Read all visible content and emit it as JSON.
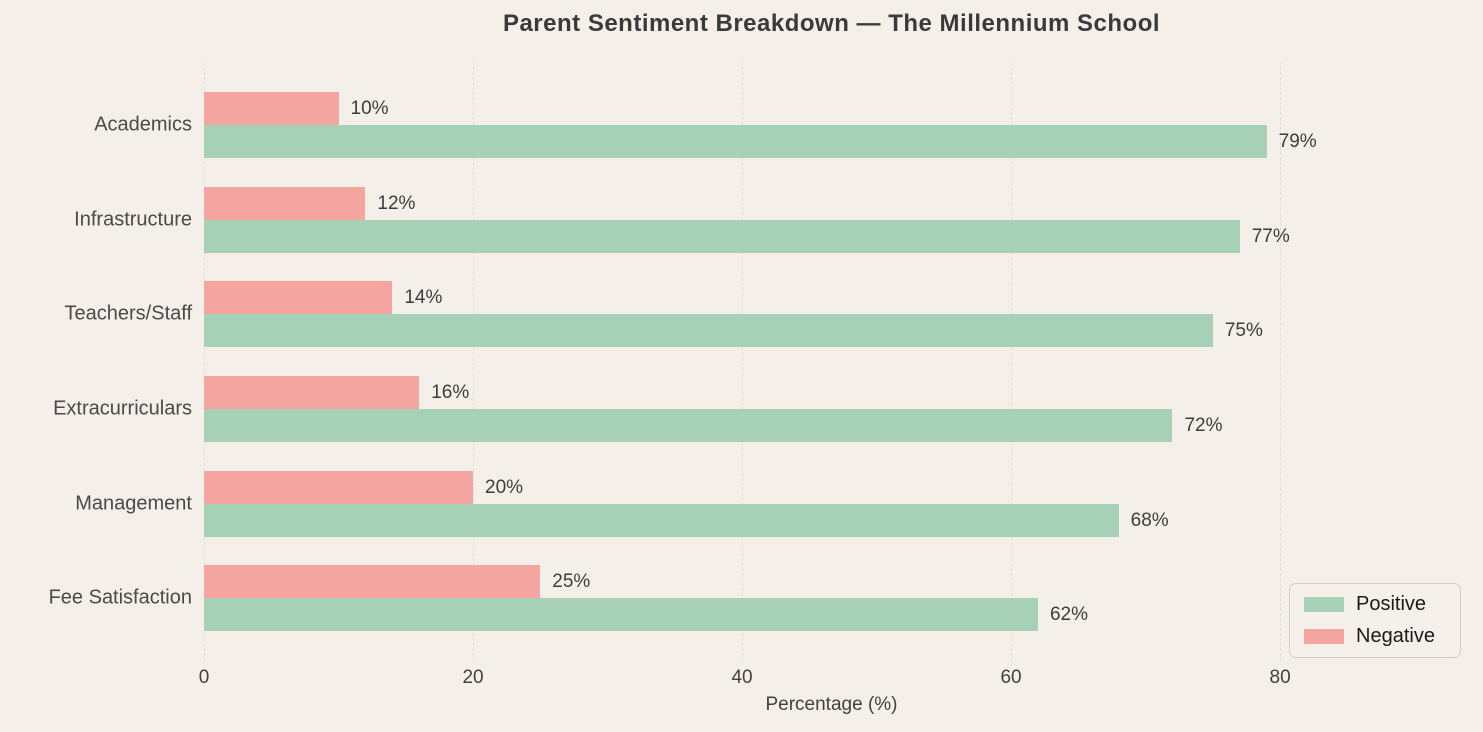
{
  "title": "Parent Sentiment Breakdown — The Millennium School",
  "chart_data": {
    "type": "bar",
    "orientation": "horizontal",
    "title": "Parent Sentiment Breakdown — The Millennium School",
    "categories": [
      "Academics",
      "Infrastructure",
      "Teachers/Staff",
      "Extracurriculars",
      "Management",
      "Fee Satisfaction"
    ],
    "series": [
      {
        "name": "Negative",
        "color": "#f4a5a0",
        "values": [
          10,
          12,
          14,
          16,
          20,
          25
        ]
      },
      {
        "name": "Positive",
        "color": "#a6d1b6",
        "values": [
          79,
          77,
          75,
          72,
          68,
          62
        ]
      }
    ],
    "bar_order_within_group": [
      "Negative",
      "Positive"
    ],
    "value_label_suffix": "%",
    "xlabel": "Percentage (%)",
    "x_ticks": [
      0,
      20,
      40,
      60,
      80
    ],
    "xlim": [
      0,
      93.3
    ],
    "grid": "vertical-dashed",
    "legend_position": "lower right"
  },
  "legend": {
    "items": [
      {
        "label": "Positive",
        "color": "#a6d1b6"
      },
      {
        "label": "Negative",
        "color": "#f4a5a0"
      }
    ]
  },
  "colors": {
    "background": "#f4efe9",
    "positive": "#a6d1b6",
    "negative": "#f4a5a0",
    "gridline": "#e2ddd5",
    "title_text": "#3a3a3a",
    "category_text": "#4a4a4a",
    "value_text": "#3d3d3d",
    "tick_text": "#45403b",
    "legend_border": "#d3cec6"
  }
}
